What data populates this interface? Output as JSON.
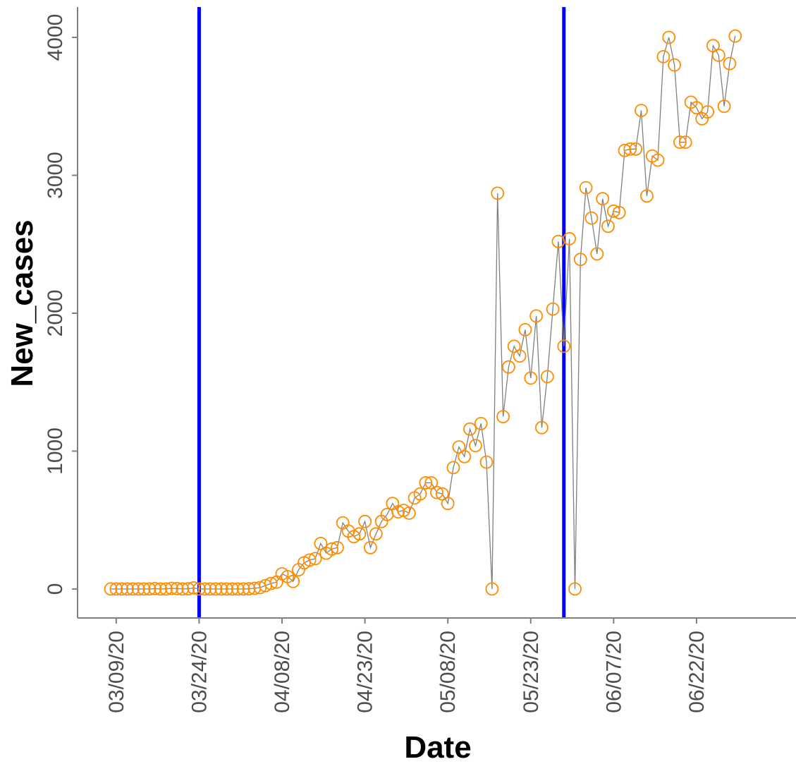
{
  "chart_data": {
    "type": "line",
    "title": "",
    "xlabel": "Date",
    "ylabel": "New_cases",
    "x_tick_labels": [
      "03/09/20",
      "03/24/20",
      "04/08/20",
      "04/23/20",
      "05/08/20",
      "05/23/20",
      "06/07/20",
      "06/22/20"
    ],
    "y_tick_labels": [
      "0",
      "1000",
      "2000",
      "3000",
      "4000"
    ],
    "y_ticks": [
      0,
      1000,
      2000,
      3000,
      4000
    ],
    "xlim": [
      "2020-03-02",
      "2020-07-10"
    ],
    "ylim": [
      -210,
      4220
    ],
    "grid": false,
    "legend": "none",
    "vertical_lines": [
      {
        "x": "2020-03-24",
        "color": "#0000ff"
      },
      {
        "x": "2020-05-29",
        "color": "#0000ff"
      }
    ],
    "marker_color": "#ff8c00",
    "line_color": "#808080",
    "series": [
      {
        "x_start": "2020-03-08",
        "values": [
          0,
          0,
          0,
          0,
          0,
          0,
          0,
          0,
          3,
          0,
          0,
          5,
          3,
          0,
          2,
          8,
          0,
          0,
          0,
          0,
          0,
          0,
          0,
          0,
          0,
          2,
          5,
          10,
          25,
          40,
          50,
          110,
          90,
          55,
          140,
          190,
          210,
          220,
          330,
          260,
          290,
          300,
          480,
          420,
          380,
          400,
          490,
          300,
          400,
          490,
          540,
          620,
          560,
          570,
          550,
          660,
          690,
          770,
          770,
          700,
          690,
          620,
          880,
          1030,
          960,
          1160,
          1040,
          1200,
          920,
          0,
          2870,
          1250,
          1610,
          1760,
          1690,
          1880,
          1530,
          1980,
          1170,
          1540,
          2030,
          2520,
          1760,
          2540,
          0,
          2390,
          2910,
          2690,
          2430,
          2830,
          2630,
          2740,
          2730,
          3180,
          3190,
          3190,
          3470,
          2850,
          3140,
          3110,
          3860,
          4000,
          3800,
          3240,
          3240,
          3530,
          3490,
          3410,
          3460,
          3940,
          3870,
          3500,
          3810,
          4010
        ]
      }
    ]
  }
}
